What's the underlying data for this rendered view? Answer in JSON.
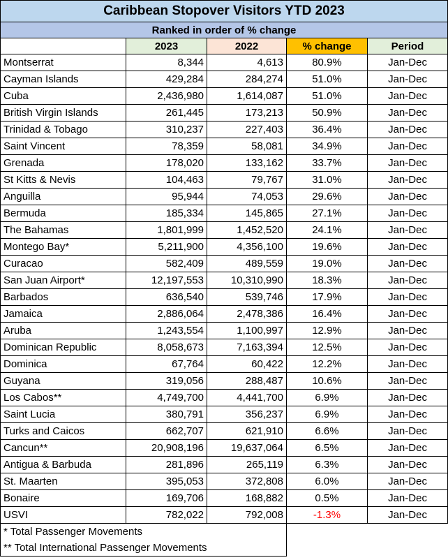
{
  "title": "Caribbean Stopover Visitors YTD 2023",
  "subtitle": "Ranked in order of % change",
  "headers": [
    "",
    "2023",
    "2022",
    "% change",
    "Period"
  ],
  "rows": [
    {
      "name": "Montserrat",
      "y2023": "8,344",
      "y2022": "4,613",
      "pct": "80.9%",
      "period": "Jan-Dec"
    },
    {
      "name": "Cayman Islands",
      "y2023": "429,284",
      "y2022": "284,274",
      "pct": "51.0%",
      "period": "Jan-Dec"
    },
    {
      "name": "Cuba",
      "y2023": "2,436,980",
      "y2022": "1,614,087",
      "pct": "51.0%",
      "period": "Jan-Dec"
    },
    {
      "name": "British Virgin Islands",
      "y2023": "261,445",
      "y2022": "173,213",
      "pct": "50.9%",
      "period": "Jan-Dec"
    },
    {
      "name": "Trinidad & Tobago",
      "y2023": "310,237",
      "y2022": "227,403",
      "pct": "36.4%",
      "period": "Jan-Dec"
    },
    {
      "name": "Saint Vincent",
      "y2023": "78,359",
      "y2022": "58,081",
      "pct": "34.9%",
      "period": "Jan-Dec"
    },
    {
      "name": "Grenada",
      "y2023": "178,020",
      "y2022": "133,162",
      "pct": "33.7%",
      "period": "Jan-Dec"
    },
    {
      "name": "St Kitts & Nevis",
      "y2023": "104,463",
      "y2022": "79,767",
      "pct": "31.0%",
      "period": "Jan-Dec"
    },
    {
      "name": "Anguilla",
      "y2023": "95,944",
      "y2022": "74,053",
      "pct": "29.6%",
      "period": "Jan-Dec"
    },
    {
      "name": "Bermuda",
      "y2023": "185,334",
      "y2022": "145,865",
      "pct": "27.1%",
      "period": "Jan-Dec"
    },
    {
      "name": "The Bahamas",
      "y2023": "1,801,999",
      "y2022": "1,452,520",
      "pct": "24.1%",
      "period": "Jan-Dec"
    },
    {
      "name": "Montego Bay*",
      "y2023": "5,211,900",
      "y2022": "4,356,100",
      "pct": "19.6%",
      "period": "Jan-Dec"
    },
    {
      "name": "Curacao",
      "y2023": "582,409",
      "y2022": "489,559",
      "pct": "19.0%",
      "period": "Jan-Dec"
    },
    {
      "name": "San Juan Airport*",
      "y2023": "12,197,553",
      "y2022": "10,310,990",
      "pct": "18.3%",
      "period": "Jan-Dec"
    },
    {
      "name": "Barbados",
      "y2023": "636,540",
      "y2022": "539,746",
      "pct": "17.9%",
      "period": "Jan-Dec"
    },
    {
      "name": "Jamaica",
      "y2023": "2,886,064",
      "y2022": "2,478,386",
      "pct": "16.4%",
      "period": "Jan-Dec"
    },
    {
      "name": "Aruba",
      "y2023": "1,243,554",
      "y2022": "1,100,997",
      "pct": "12.9%",
      "period": "Jan-Dec"
    },
    {
      "name": "Dominican Republic",
      "y2023": "8,058,673",
      "y2022": "7,163,394",
      "pct": "12.5%",
      "period": "Jan-Dec"
    },
    {
      "name": "Dominica",
      "y2023": "67,764",
      "y2022": "60,422",
      "pct": "12.2%",
      "period": "Jan-Dec"
    },
    {
      "name": "Guyana",
      "y2023": "319,056",
      "y2022": "288,487",
      "pct": "10.6%",
      "period": "Jan-Dec"
    },
    {
      "name": "Los Cabos**",
      "y2023": "4,749,700",
      "y2022": "4,441,700",
      "pct": "6.9%",
      "period": "Jan-Dec"
    },
    {
      "name": "Saint Lucia",
      "y2023": "380,791",
      "y2022": "356,237",
      "pct": "6.9%",
      "period": "Jan-Dec"
    },
    {
      "name": "Turks and Caicos",
      "y2023": "662,707",
      "y2022": "621,910",
      "pct": "6.6%",
      "period": "Jan-Dec"
    },
    {
      "name": "Cancun**",
      "y2023": "20,908,196",
      "y2022": "19,637,064",
      "pct": "6.5%",
      "period": "Jan-Dec"
    },
    {
      "name": "Antigua & Barbuda",
      "y2023": "281,896",
      "y2022": "265,119",
      "pct": "6.3%",
      "period": "Jan-Dec"
    },
    {
      "name": "St. Maarten",
      "y2023": "395,053",
      "y2022": "372,808",
      "pct": "6.0%",
      "period": "Jan-Dec"
    },
    {
      "name": "Bonaire",
      "y2023": "169,706",
      "y2022": "168,882",
      "pct": "0.5%",
      "period": "Jan-Dec"
    },
    {
      "name": "USVI",
      "y2023": "782,022",
      "y2022": "792,008",
      "pct": "-1.3%",
      "period": "Jan-Dec",
      "negative": true
    }
  ],
  "notes": [
    "* Total Passenger Movements",
    "** Total International Passenger Movements"
  ]
}
